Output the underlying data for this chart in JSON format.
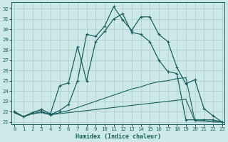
{
  "xlabel": "Humidex (Indice chaleur)",
  "bg_color": "#cce8e8",
  "grid_color": "#aacccc",
  "line_color": "#1a5f5f",
  "xlim": [
    -0.3,
    23.3
  ],
  "ylim": [
    20.8,
    32.6
  ],
  "xticks": [
    0,
    1,
    2,
    3,
    4,
    5,
    6,
    7,
    8,
    9,
    10,
    11,
    12,
    13,
    14,
    15,
    16,
    17,
    18,
    19,
    20,
    21,
    22,
    23
  ],
  "yticks": [
    21,
    22,
    23,
    24,
    25,
    26,
    27,
    28,
    29,
    30,
    31,
    32
  ],
  "series": {
    "line1": {
      "x": [
        0,
        1,
        2,
        3,
        3,
        4,
        5,
        6,
        7,
        8,
        9,
        10,
        11,
        12,
        13,
        14,
        15,
        16,
        17,
        18,
        19,
        20,
        21,
        22,
        23
      ],
      "y": [
        22.0,
        21.5,
        21.9,
        22.2,
        22.0,
        21.7,
        22.1,
        22.7,
        25.0,
        29.5,
        29.3,
        30.3,
        32.2,
        30.9,
        29.9,
        31.2,
        31.2,
        29.5,
        28.8,
        26.3,
        24.7,
        25.1,
        22.3,
        21.6,
        21.0
      ],
      "markers": true
    },
    "line2": {
      "x": [
        0,
        1,
        2,
        3,
        4,
        5,
        6,
        7,
        8,
        9,
        10,
        11,
        12,
        13,
        14,
        15,
        16,
        17,
        18,
        19,
        20,
        21,
        22,
        23
      ],
      "y": [
        22.0,
        21.5,
        21.9,
        22.2,
        21.8,
        24.5,
        24.8,
        28.3,
        25.0,
        28.8,
        29.8,
        31.0,
        31.5,
        29.7,
        29.5,
        28.8,
        27.0,
        25.9,
        25.7,
        21.2,
        21.2,
        21.2,
        21.2,
        21.0
      ],
      "markers": true
    },
    "line3": {
      "x": [
        0,
        1,
        2,
        3,
        4,
        5,
        6,
        7,
        8,
        9,
        10,
        11,
        12,
        13,
        14,
        15,
        16,
        17,
        18,
        19,
        20,
        21,
        22,
        23
      ],
      "y": [
        21.9,
        21.5,
        21.8,
        22.0,
        21.7,
        21.9,
        22.1,
        22.4,
        22.7,
        23.0,
        23.3,
        23.6,
        23.9,
        24.2,
        24.4,
        24.7,
        24.9,
        25.0,
        25.2,
        25.3,
        21.1,
        21.1,
        21.0,
        21.0
      ],
      "markers": false
    },
    "line4": {
      "x": [
        0,
        1,
        2,
        3,
        4,
        5,
        6,
        7,
        8,
        9,
        10,
        11,
        12,
        13,
        14,
        15,
        16,
        17,
        18,
        19,
        20,
        21,
        22,
        23
      ],
      "y": [
        21.9,
        21.5,
        21.8,
        21.9,
        21.7,
        21.8,
        21.9,
        22.0,
        22.1,
        22.2,
        22.3,
        22.4,
        22.5,
        22.6,
        22.7,
        22.8,
        22.9,
        23.0,
        23.1,
        23.2,
        21.1,
        21.1,
        21.0,
        21.0
      ],
      "markers": false
    }
  }
}
